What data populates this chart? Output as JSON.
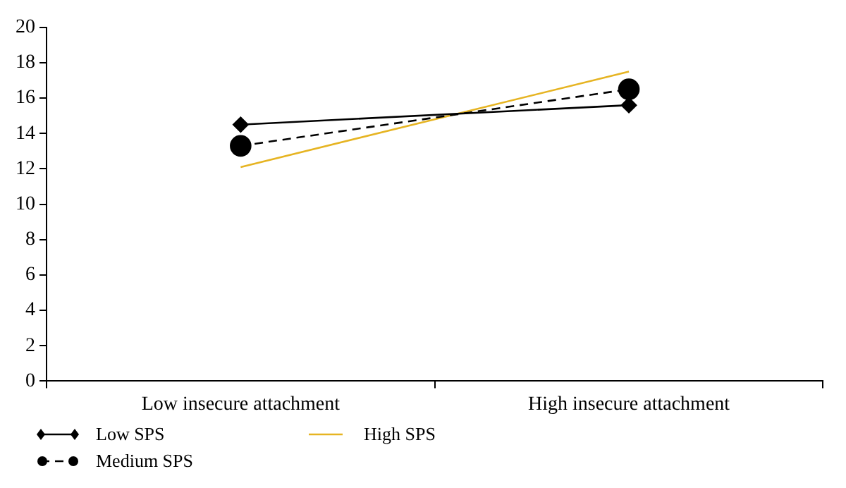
{
  "chart_data": {
    "type": "line",
    "categories": [
      "Low insecure attachment",
      "High insecure attachment"
    ],
    "series": [
      {
        "name": "Low SPS",
        "color": "#000000",
        "values": [
          14.5,
          15.6
        ],
        "marker": "diamond",
        "line_style": "solid"
      },
      {
        "name": "Medium SPS",
        "color": "#000000",
        "values": [
          13.3,
          16.5
        ],
        "marker": "circle",
        "line_style": "dashed"
      },
      {
        "name": "High SPS",
        "color": "#e6b422",
        "values": [
          12.1,
          17.5
        ],
        "marker": "none",
        "line_style": "solid"
      }
    ],
    "ylim": [
      0,
      20
    ],
    "yticks": [
      0,
      2,
      4,
      6,
      8,
      10,
      12,
      14,
      16,
      18,
      20
    ],
    "grid": false,
    "legend": "bottom left"
  }
}
